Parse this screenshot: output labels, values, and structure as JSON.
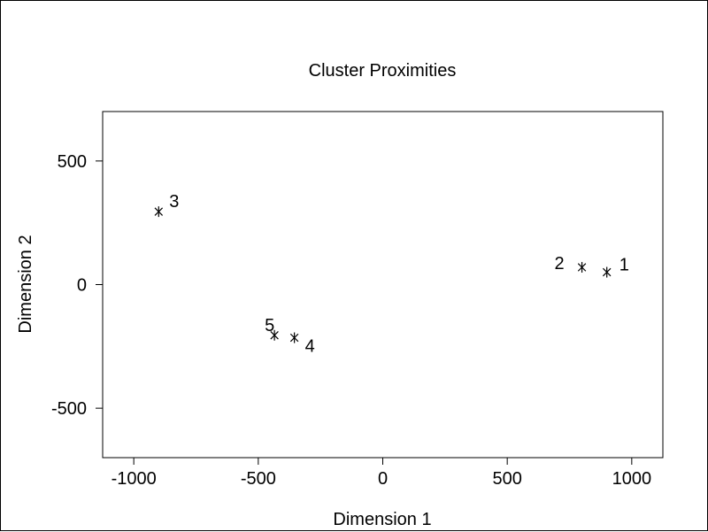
{
  "chart_data": {
    "type": "scatter",
    "title": "Cluster Proximities",
    "xlabel": "Dimension 1",
    "ylabel": "Dimension 2",
    "xlim": [
      -1125,
      1125
    ],
    "ylim": [
      -700,
      700
    ],
    "xticks": [
      -1000,
      -500,
      0,
      500,
      1000
    ],
    "yticks": [
      -500,
      0,
      500
    ],
    "xtick_labels": [
      "-1000",
      "-500",
      "0",
      "500",
      "1000"
    ],
    "ytick_labels": [
      "-500",
      "0",
      "500"
    ],
    "grid": false,
    "marker": "asterisk",
    "points": [
      {
        "label": "1",
        "x": 900,
        "y": 50
      },
      {
        "label": "2",
        "x": 800,
        "y": 70
      },
      {
        "label": "3",
        "x": -900,
        "y": 295
      },
      {
        "label": "4",
        "x": -355,
        "y": -215
      },
      {
        "label": "5",
        "x": -435,
        "y": -205
      }
    ]
  }
}
